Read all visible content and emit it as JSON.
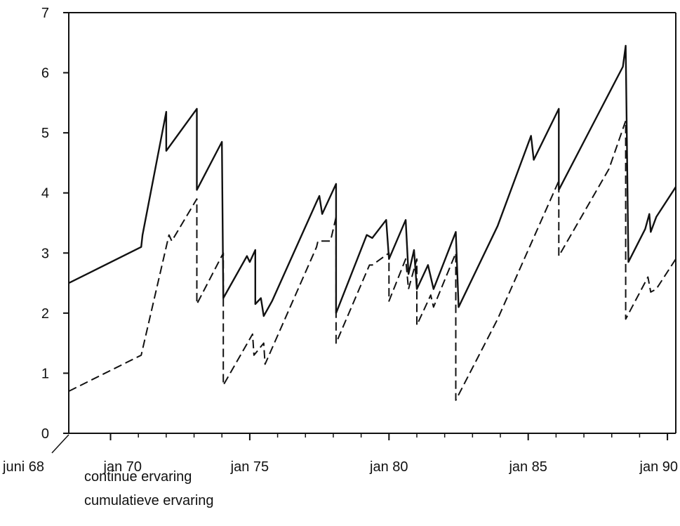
{
  "chart_data": {
    "type": "line",
    "title": "",
    "xlabel": "",
    "ylabel": "",
    "ylim": [
      0,
      7
    ],
    "xlim": [
      1968.5,
      1990.3
    ],
    "yticks": [
      0,
      1,
      2,
      3,
      4,
      5,
      6,
      7
    ],
    "ytick_labels": [
      "0",
      "1",
      "2",
      "3",
      "4",
      "5",
      "6",
      "7"
    ],
    "xticks": [
      1968.5,
      1970,
      1975,
      1980,
      1985,
      1990
    ],
    "xtick_labels": [
      "juni 68",
      "jan 70",
      "jan 75",
      "jan 80",
      "jan 85",
      "jan 90"
    ],
    "grid": false,
    "legend_position": "bottom-left",
    "series": [
      {
        "name": "continue ervaring",
        "style": "dashed",
        "points": [
          [
            1968.5,
            0.7
          ],
          [
            1971.1,
            1.3
          ],
          [
            1972.1,
            3.3
          ],
          [
            1972.2,
            3.2
          ],
          [
            1973.1,
            3.9
          ],
          [
            1973.1,
            2.15
          ],
          [
            1974.05,
            3.0
          ],
          [
            1974.05,
            0.8
          ],
          [
            1975.1,
            1.65
          ],
          [
            1975.15,
            1.3
          ],
          [
            1975.5,
            1.5
          ],
          [
            1975.55,
            1.15
          ],
          [
            1977.4,
            3.1
          ],
          [
            1977.45,
            3.2
          ],
          [
            1977.9,
            3.2
          ],
          [
            1978.1,
            3.6
          ],
          [
            1978.1,
            1.5
          ],
          [
            1979.3,
            2.8
          ],
          [
            1979.4,
            2.8
          ],
          [
            1980.0,
            3.0
          ],
          [
            1980.0,
            2.2
          ],
          [
            1980.6,
            2.9
          ],
          [
            1980.7,
            2.4
          ],
          [
            1981.0,
            2.9
          ],
          [
            1981.0,
            1.8
          ],
          [
            1981.5,
            2.3
          ],
          [
            1981.6,
            2.1
          ],
          [
            1982.4,
            3.0
          ],
          [
            1982.4,
            0.55
          ],
          [
            1983.9,
            1.9
          ],
          [
            1986.1,
            4.2
          ],
          [
            1986.1,
            2.95
          ],
          [
            1987.9,
            4.4
          ],
          [
            1988.5,
            5.2
          ],
          [
            1988.5,
            1.9
          ],
          [
            1989.3,
            2.6
          ],
          [
            1989.4,
            2.35
          ],
          [
            1989.6,
            2.4
          ],
          [
            1990.3,
            2.9
          ]
        ]
      },
      {
        "name": "cumulatieve ervaring",
        "style": "solid",
        "points": [
          [
            1968.5,
            2.5
          ],
          [
            1971.1,
            3.1
          ],
          [
            1971.15,
            3.3
          ],
          [
            1972.0,
            5.35
          ],
          [
            1972.0,
            4.7
          ],
          [
            1973.1,
            5.4
          ],
          [
            1973.1,
            4.05
          ],
          [
            1974.0,
            4.85
          ],
          [
            1974.05,
            2.25
          ],
          [
            1974.9,
            2.95
          ],
          [
            1975.0,
            2.85
          ],
          [
            1975.2,
            3.05
          ],
          [
            1975.2,
            2.15
          ],
          [
            1975.4,
            2.25
          ],
          [
            1975.5,
            1.95
          ],
          [
            1975.8,
            2.2
          ],
          [
            1977.4,
            3.85
          ],
          [
            1977.5,
            3.95
          ],
          [
            1977.6,
            3.65
          ],
          [
            1978.1,
            4.15
          ],
          [
            1978.1,
            2.0
          ],
          [
            1979.2,
            3.3
          ],
          [
            1979.4,
            3.25
          ],
          [
            1979.9,
            3.55
          ],
          [
            1980.0,
            2.9
          ],
          [
            1980.6,
            3.55
          ],
          [
            1980.7,
            2.65
          ],
          [
            1980.9,
            3.05
          ],
          [
            1981.0,
            2.4
          ],
          [
            1981.4,
            2.8
          ],
          [
            1981.6,
            2.4
          ],
          [
            1982.4,
            3.35
          ],
          [
            1982.5,
            2.1
          ],
          [
            1983.9,
            3.45
          ],
          [
            1985.1,
            4.95
          ],
          [
            1985.2,
            4.55
          ],
          [
            1986.1,
            5.4
          ],
          [
            1986.1,
            4.05
          ],
          [
            1987.5,
            5.3
          ],
          [
            1988.4,
            6.1
          ],
          [
            1988.5,
            6.45
          ],
          [
            1988.6,
            2.85
          ],
          [
            1989.2,
            3.4
          ],
          [
            1989.35,
            3.65
          ],
          [
            1989.4,
            3.35
          ],
          [
            1989.6,
            3.6
          ],
          [
            1990.3,
            4.1
          ]
        ]
      }
    ]
  },
  "legend": [
    {
      "marker": "--------",
      "label": "continue ervaring"
    },
    {
      "marker": "——",
      "label": "cumulatieve ervaring"
    }
  ]
}
